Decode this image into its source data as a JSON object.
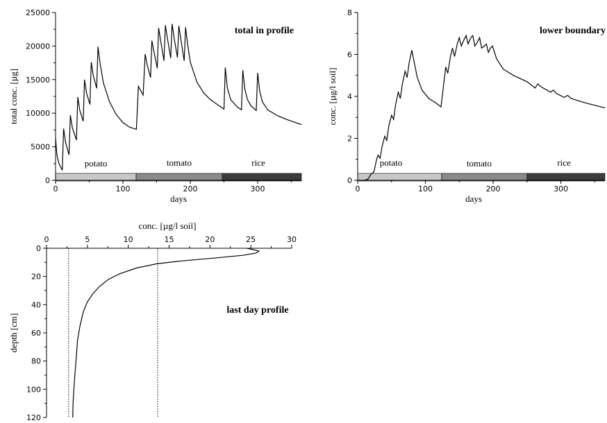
{
  "chart_data": [
    {
      "type": "line",
      "title": "",
      "annotation": "total in profile",
      "xlabel": "days",
      "ylabel": "total conc. [µg]",
      "xlim": [
        0,
        365
      ],
      "ylim": [
        0,
        25000
      ],
      "x_ticks": [
        0,
        100,
        200,
        300
      ],
      "y_ticks": [
        0,
        5000,
        10000,
        15000,
        20000,
        25000
      ],
      "crops": [
        {
          "name": "potato",
          "start": 0,
          "end": 120,
          "color": "#c8c8c8"
        },
        {
          "name": "tomato",
          "start": 120,
          "end": 248,
          "color": "#8a8a8a"
        },
        {
          "name": "rice",
          "start": 248,
          "end": 365,
          "color": "#3c3c3c"
        }
      ],
      "series": [
        {
          "points": [
            [
              0,
              6300
            ],
            [
              2,
              3800
            ],
            [
              5,
              2500
            ],
            [
              10,
              1500
            ],
            [
              12,
              7700
            ],
            [
              15,
              5600
            ],
            [
              20,
              3800
            ],
            [
              22,
              9700
            ],
            [
              25,
              7800
            ],
            [
              31,
              6000
            ],
            [
              33,
              12400
            ],
            [
              36,
              10400
            ],
            [
              41,
              8800
            ],
            [
              43,
              15000
            ],
            [
              46,
              13000
            ],
            [
              51,
              11300
            ],
            [
              53,
              17600
            ],
            [
              56,
              15600
            ],
            [
              61,
              13700
            ],
            [
              63,
              19900
            ],
            [
              66,
              17500
            ],
            [
              71,
              14500
            ],
            [
              80,
              11700
            ],
            [
              90,
              9800
            ],
            [
              100,
              8600
            ],
            [
              110,
              7900
            ],
            [
              120,
              7600
            ],
            [
              123,
              14000
            ],
            [
              130,
              12700
            ],
            [
              133,
              18800
            ],
            [
              136,
              17200
            ],
            [
              141,
              15300
            ],
            [
              143,
              20800
            ],
            [
              146,
              19200
            ],
            [
              151,
              16700
            ],
            [
              153,
              22700
            ],
            [
              156,
              20800
            ],
            [
              161,
              17800
            ],
            [
              163,
              23100
            ],
            [
              166,
              21200
            ],
            [
              171,
              18200
            ],
            [
              173,
              23300
            ],
            [
              176,
              21200
            ],
            [
              181,
              18300
            ],
            [
              183,
              23000
            ],
            [
              186,
              21000
            ],
            [
              191,
              17800
            ],
            [
              193,
              22800
            ],
            [
              196,
              20300
            ],
            [
              200,
              17600
            ],
            [
              210,
              14600
            ],
            [
              220,
              13000
            ],
            [
              230,
              12000
            ],
            [
              240,
              11300
            ],
            [
              250,
              10600
            ],
            [
              252,
              16800
            ],
            [
              255,
              13800
            ],
            [
              260,
              12000
            ],
            [
              270,
              10900
            ],
            [
              276,
              10500
            ],
            [
              278,
              16400
            ],
            [
              281,
              13600
            ],
            [
              285,
              12000
            ],
            [
              290,
              11100
            ],
            [
              298,
              10400
            ],
            [
              300,
              16000
            ],
            [
              303,
              13300
            ],
            [
              307,
              11700
            ],
            [
              315,
              10500
            ],
            [
              330,
              9600
            ],
            [
              345,
              9000
            ],
            [
              365,
              8300
            ]
          ]
        }
      ]
    },
    {
      "type": "line",
      "title": "",
      "annotation": "lower boundary",
      "xlabel": "days",
      "ylabel": "conc. [µg/l soil]",
      "xlim": [
        0,
        365
      ],
      "ylim": [
        0,
        8
      ],
      "x_ticks": [
        0,
        100,
        200,
        300
      ],
      "y_ticks": [
        0,
        2,
        4,
        6,
        8
      ],
      "crops": [
        {
          "name": "potato",
          "start": 0,
          "end": 123,
          "color": "#c8c8c8"
        },
        {
          "name": "tomato",
          "start": 123,
          "end": 250,
          "color": "#8a8a8a"
        },
        {
          "name": "rice",
          "start": 250,
          "end": 365,
          "color": "#3c3c3c"
        }
      ],
      "series": [
        {
          "points": [
            [
              0,
              0
            ],
            [
              10,
              0
            ],
            [
              15,
              0.05
            ],
            [
              20,
              0.3
            ],
            [
              24,
              0.4
            ],
            [
              28,
              1.0
            ],
            [
              30,
              1.2
            ],
            [
              33,
              1.05
            ],
            [
              36,
              1.6
            ],
            [
              40,
              2.1
            ],
            [
              43,
              1.9
            ],
            [
              46,
              2.6
            ],
            [
              50,
              3.1
            ],
            [
              53,
              2.9
            ],
            [
              56,
              3.6
            ],
            [
              60,
              4.2
            ],
            [
              63,
              3.9
            ],
            [
              66,
              4.6
            ],
            [
              70,
              5.2
            ],
            [
              73,
              4.9
            ],
            [
              76,
              5.6
            ],
            [
              80,
              6.2
            ],
            [
              83,
              5.7
            ],
            [
              88,
              4.9
            ],
            [
              95,
              4.3
            ],
            [
              105,
              3.9
            ],
            [
              115,
              3.7
            ],
            [
              123,
              3.5
            ],
            [
              127,
              4.6
            ],
            [
              130,
              5.4
            ],
            [
              133,
              5.1
            ],
            [
              137,
              5.9
            ],
            [
              140,
              6.3
            ],
            [
              143,
              5.9
            ],
            [
              147,
              6.5
            ],
            [
              150,
              6.8
            ],
            [
              153,
              6.4
            ],
            [
              157,
              6.7
            ],
            [
              160,
              6.9
            ],
            [
              163,
              6.5
            ],
            [
              167,
              6.8
            ],
            [
              170,
              6.9
            ],
            [
              173,
              6.4
            ],
            [
              177,
              6.6
            ],
            [
              180,
              6.8
            ],
            [
              183,
              6.3
            ],
            [
              187,
              6.4
            ],
            [
              190,
              6.5
            ],
            [
              193,
              6.1
            ],
            [
              196,
              6.3
            ],
            [
              199,
              6.4
            ],
            [
              205,
              5.8
            ],
            [
              215,
              5.3
            ],
            [
              230,
              5.0
            ],
            [
              250,
              4.7
            ],
            [
              262,
              4.4
            ],
            [
              266,
              4.6
            ],
            [
              271,
              4.45
            ],
            [
              285,
              4.2
            ],
            [
              289,
              4.3
            ],
            [
              293,
              4.15
            ],
            [
              305,
              3.95
            ],
            [
              310,
              4.05
            ],
            [
              315,
              3.9
            ],
            [
              335,
              3.7
            ],
            [
              365,
              3.45
            ]
          ]
        }
      ]
    },
    {
      "type": "line",
      "title": "",
      "annotation": "last day profile",
      "xlabel": "conc. [µg/l soil]",
      "ylabel": "depth [cm]",
      "xlim": [
        0,
        30
      ],
      "ylim": [
        0,
        120
      ],
      "x_ticks": [
        0,
        5,
        10,
        15,
        20,
        25,
        30
      ],
      "y_ticks": [
        0,
        20,
        40,
        60,
        80,
        100,
        120
      ],
      "reference_lines": [
        2.7,
        13.6
      ],
      "series": [
        {
          "points": [
            [
              24.5,
              0
            ],
            [
              25.3,
              1
            ],
            [
              26.0,
              2
            ],
            [
              25.6,
              3.5
            ],
            [
              24.0,
              5
            ],
            [
              20.5,
              7
            ],
            [
              16.5,
              9
            ],
            [
              13.5,
              11
            ],
            [
              11.0,
              14
            ],
            [
              9.0,
              18
            ],
            [
              7.6,
              22
            ],
            [
              6.5,
              27
            ],
            [
              5.7,
              32
            ],
            [
              5.0,
              38
            ],
            [
              4.5,
              45
            ],
            [
              4.1,
              55
            ],
            [
              3.8,
              65
            ],
            [
              3.6,
              80
            ],
            [
              3.4,
              95
            ],
            [
              3.25,
              110
            ],
            [
              3.2,
              120
            ]
          ]
        }
      ]
    }
  ]
}
